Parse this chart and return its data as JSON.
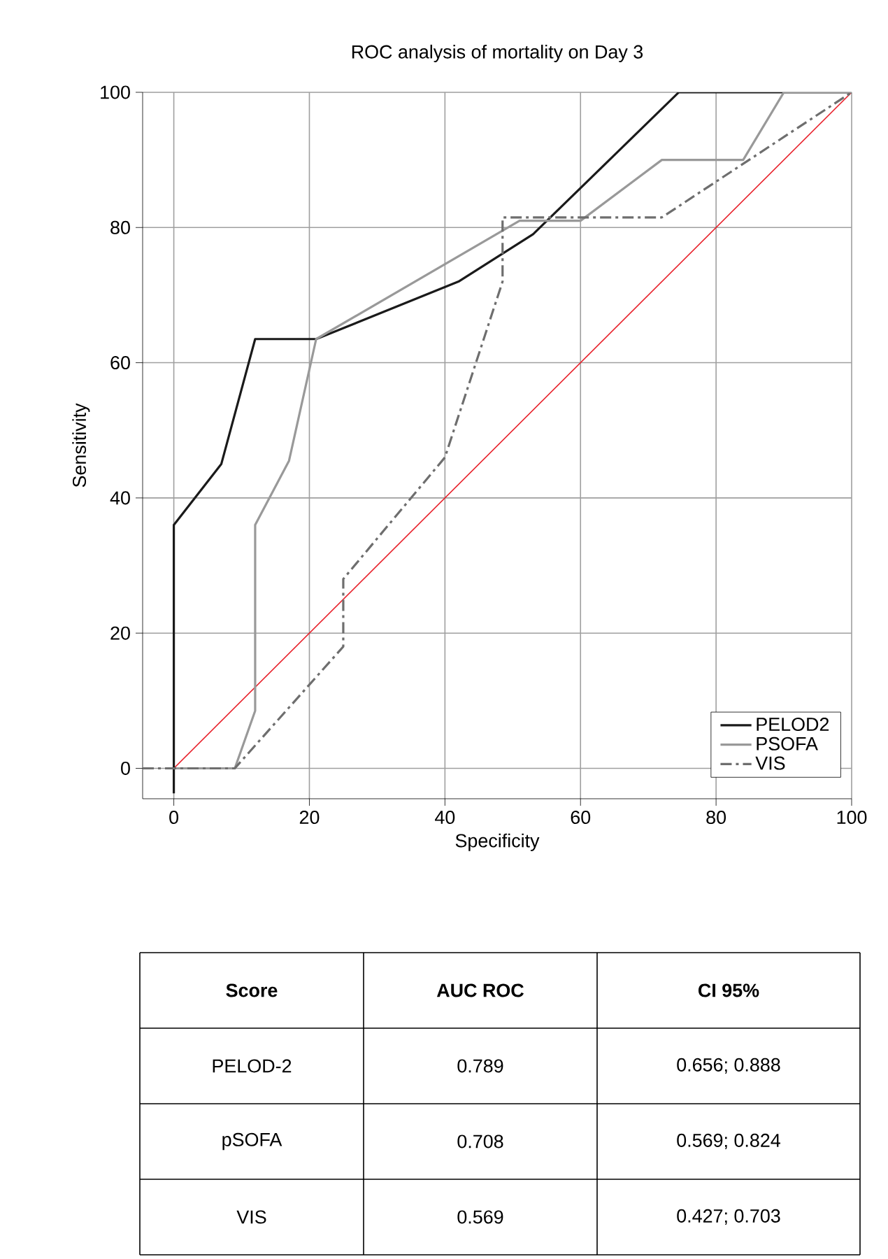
{
  "chart_data": {
    "type": "line",
    "title": "ROC analysis of mortality on Day 3",
    "xlabel": "Specificity",
    "ylabel": "Sensitivity",
    "xlim": [
      -4.6,
      100
    ],
    "ylim": [
      -4.5,
      100
    ],
    "xticks": [
      0,
      20,
      40,
      60,
      80,
      100
    ],
    "yticks": [
      0,
      20,
      40,
      60,
      80,
      100
    ],
    "grid": true,
    "legend": "bottom right",
    "marker": "none",
    "series": [
      {
        "name": "PELOD2",
        "color": "#1a1a1a",
        "line_style": "solid",
        "x": [
          0,
          0,
          7,
          12,
          21,
          42,
          53,
          74.5,
          100
        ],
        "values": [
          -3.7,
          36,
          45,
          63.5,
          63.5,
          72,
          79,
          100,
          100
        ]
      },
      {
        "name": "PSOFA",
        "color": "#999999",
        "line_style": "solid",
        "x": [
          0,
          9,
          12,
          12,
          17,
          21,
          51,
          60,
          72,
          84,
          90,
          100
        ],
        "values": [
          0,
          0,
          8.5,
          36,
          45.5,
          63.5,
          81,
          81,
          90,
          90,
          100,
          100
        ]
      },
      {
        "name": "VIS",
        "color": "#6e6e6e",
        "line_style": "dashed",
        "x": [
          -4.6,
          9,
          25,
          25,
          40,
          48.5,
          48.5,
          72,
          100
        ],
        "values": [
          0,
          0,
          18,
          28,
          46,
          72,
          81.5,
          81.5,
          100
        ]
      },
      {
        "color": "#e8202a",
        "line_style": "solid",
        "x": [
          0,
          100
        ],
        "values": [
          0,
          100
        ]
      }
    ],
    "annotations": [
      "Score",
      "AUC ROC",
      "CI 95%",
      "PELOD-2",
      "0.789",
      "0.656; 0.888",
      "pSOFA",
      "0.708",
      "0.569; 0.824",
      "VIS",
      "0.569",
      "0.427; 0.703"
    ]
  }
}
